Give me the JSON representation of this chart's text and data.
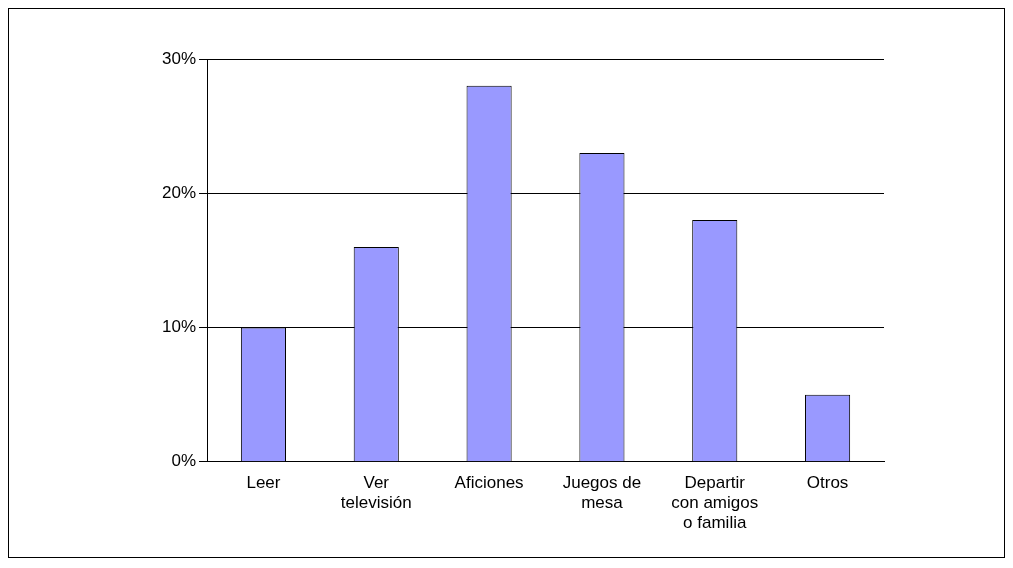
{
  "chart_data": {
    "type": "bar",
    "categories": [
      "Leer",
      "Ver televisión",
      "Aficiones",
      "Juegos de mesa",
      "Departir con amigos o familia",
      "Otros"
    ],
    "values": [
      10,
      16,
      28,
      23,
      18,
      5
    ],
    "color": "#9999ff",
    "ylim": [
      0,
      30
    ],
    "yticks": [
      {
        "value": 0,
        "label": "0%"
      },
      {
        "value": 10,
        "label": "10%"
      },
      {
        "value": 20,
        "label": "20%"
      },
      {
        "value": 30,
        "label": "30%"
      }
    ],
    "grid": "y",
    "legend": false
  }
}
